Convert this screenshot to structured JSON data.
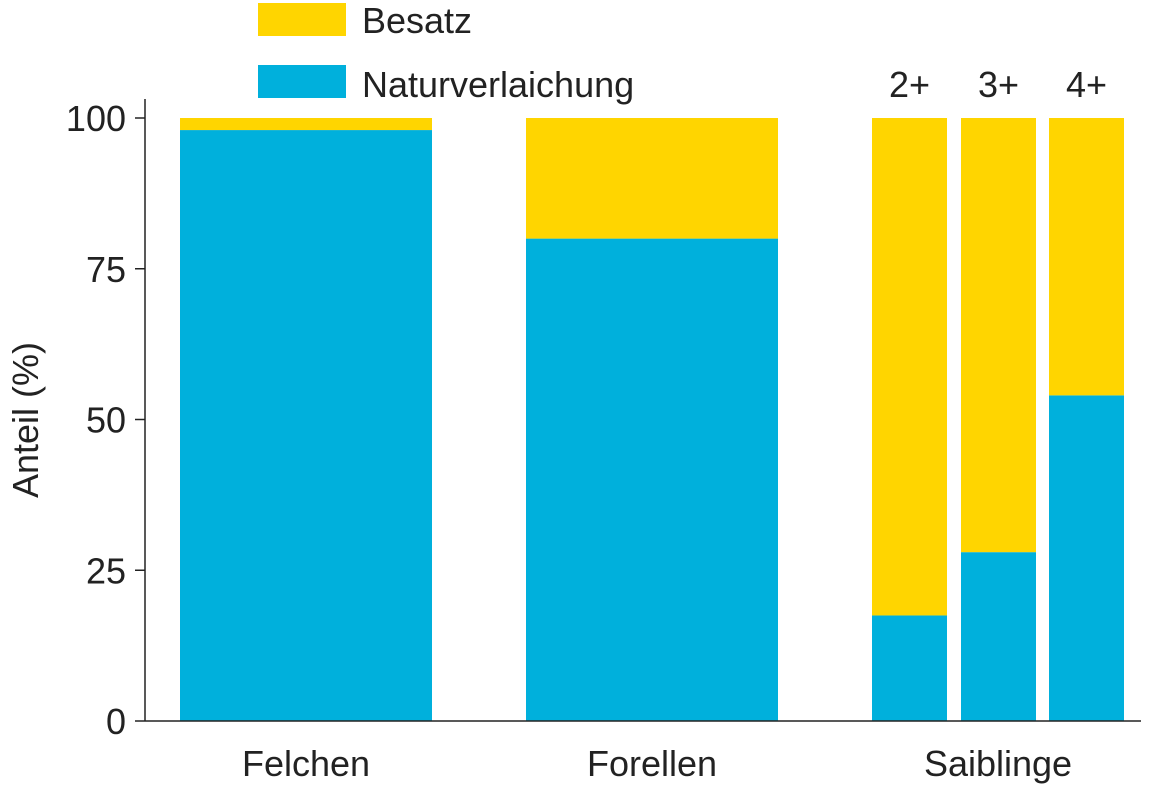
{
  "colors": {
    "besatz": "#FFD500",
    "naturverlaichung": "#00B0DC",
    "axis": "#222222",
    "text": "#222222"
  },
  "legend": {
    "items": [
      {
        "label": "Besatz",
        "color": "#FFD500"
      },
      {
        "label": "Naturverlaichung",
        "color": "#00B0DC"
      }
    ]
  },
  "chart_data": {
    "type": "bar",
    "stacked": true,
    "percent": true,
    "ylabel": "Anteil (%)",
    "xlabel": "",
    "ylim": [
      0,
      100
    ],
    "yticks": [
      "0",
      "25",
      "50",
      "75",
      "100"
    ],
    "groups": [
      "Felchen",
      "Forellen",
      "Saiblinge"
    ],
    "bars": [
      {
        "group": "Felchen",
        "label": "",
        "naturverlaichung": 98,
        "besatz": 2
      },
      {
        "group": "Forellen",
        "label": "",
        "naturverlaichung": 80,
        "besatz": 20
      },
      {
        "group": "Saiblinge",
        "label": "2+",
        "naturverlaichung": 17.5,
        "besatz": 82.5
      },
      {
        "group": "Saiblinge",
        "label": "3+",
        "naturverlaichung": 28,
        "besatz": 72
      },
      {
        "group": "Saiblinge",
        "label": "4+",
        "naturverlaichung": 54,
        "besatz": 46
      }
    ],
    "series": [
      {
        "name": "Naturverlaichung",
        "key": "naturverlaichung",
        "values": [
          98,
          80,
          17.5,
          28,
          54
        ]
      },
      {
        "name": "Besatz",
        "key": "besatz",
        "values": [
          2,
          20,
          82.5,
          72,
          46
        ]
      }
    ],
    "legend_position": "top-left",
    "grid": false
  }
}
